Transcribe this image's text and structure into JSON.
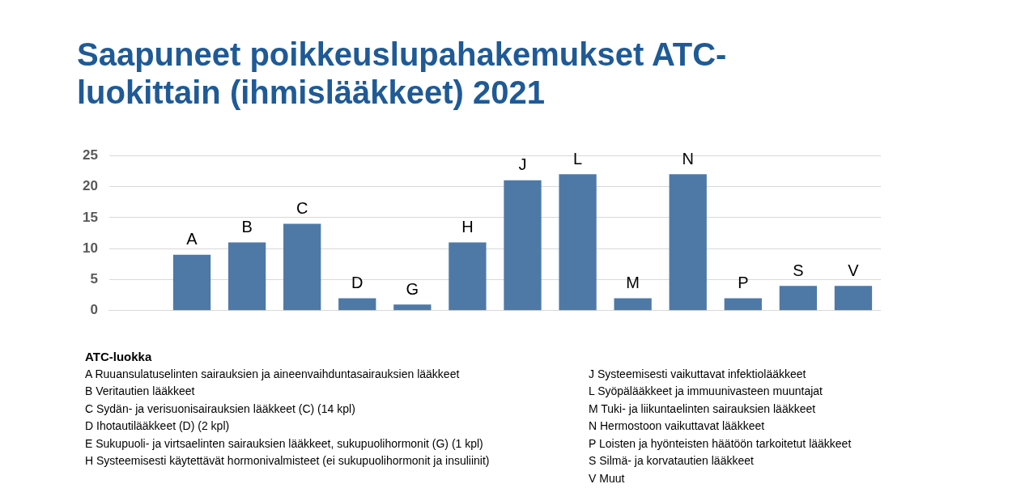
{
  "chart_data": {
    "type": "bar",
    "title": "Saapuneet poikkeuslupahakemukset ATC-luokittain (ihmislääkkeet) 2021",
    "categories": [
      null,
      null,
      null,
      null,
      null,
      null,
      null,
      null,
      null,
      null,
      null,
      null,
      null,
      null
    ],
    "values": [
      null,
      9,
      11,
      14,
      2,
      1,
      11,
      21,
      22,
      2,
      22,
      2,
      4,
      4
    ],
    "value_labels": [
      null,
      "A",
      "B",
      "C",
      "D",
      "G",
      "H",
      "J",
      "L",
      "M",
      "N",
      "P",
      "S",
      "V"
    ],
    "color": "#4e79a7",
    "ylim": [
      0,
      25
    ],
    "yticks": [
      0,
      5,
      10,
      15,
      20,
      25
    ],
    "grid": "y",
    "legend": false,
    "annotations": [
      "ATC-luokka",
      "A Ruuansulatuselinten sairauksien ja aineenvaihduntasairauksien lääkkeet",
      "B Veritautien lääkkeet",
      "C Sydän- ja verisuonisairauksien lääkkeet (C) (14 kpl)",
      "D Ihotautilääkkeet (D) (2 kpl)",
      "E Sukupuoli- ja virtsaelinten sairauksien lääkkeet, sukupuolihormonit (G) (1 kpl)",
      "H Systeemisesti käytettävät hormonivalmisteet (ei sukupuolihormonit ja insuliinit)",
      "J Systeemisesti vaikuttavat infektiolääkkeet",
      "L Syöpälääkkeet ja immuunivasteen muuntajat",
      "M Tuki- ja liikuntaelinten sairauksien lääkkeet",
      "N Hermostoon vaikuttavat lääkkeet",
      "P Loisten ja hyönteisten häätöön tarkoitetut lääkkeet",
      "S Silmä- ja korvatautien lääkkeet",
      "V Muut"
    ]
  }
}
